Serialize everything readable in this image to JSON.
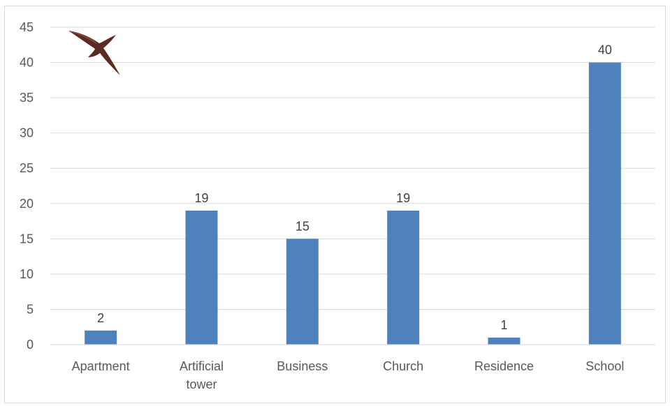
{
  "chart_data": {
    "type": "bar",
    "title": "",
    "xlabel": "",
    "ylabel": "",
    "categories": [
      [
        "Apartment"
      ],
      [
        "Artificial",
        "tower"
      ],
      [
        "Business"
      ],
      [
        "Church"
      ],
      [
        "Residence"
      ],
      [
        "School"
      ]
    ],
    "values": [
      2,
      19,
      15,
      19,
      1,
      40
    ],
    "data_labels": [
      "2",
      "19",
      "15",
      "19",
      "1",
      "40"
    ],
    "ylim": [
      0,
      45
    ],
    "yticks": [
      0,
      5,
      10,
      15,
      20,
      25,
      30,
      35,
      40,
      45
    ],
    "ytick_labels": [
      "0",
      "5",
      "10",
      "15",
      "20",
      "25",
      "30",
      "35",
      "40",
      "45"
    ],
    "grid": true,
    "legend": "none",
    "bar_color": "#4f81bd",
    "decoration": "swift-bird-icon"
  }
}
